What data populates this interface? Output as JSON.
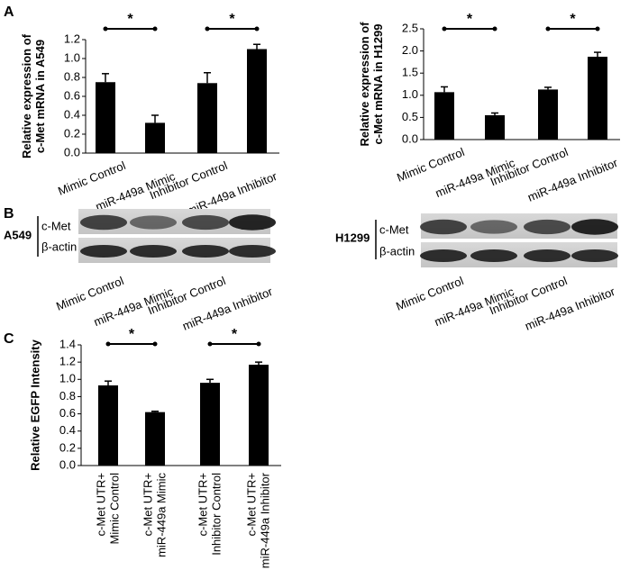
{
  "panel_labels": [
    "A",
    "B",
    "C"
  ],
  "chart_data": [
    {
      "type": "bar",
      "ylabel": [
        "Relative expression of",
        "c-Met mRNA in A549"
      ],
      "categories": [
        "Mimic Control",
        "miR-449a Mimic",
        "Inhibitor Control",
        "miR-449a Inhibitor"
      ],
      "values": [
        0.75,
        0.32,
        0.74,
        1.1
      ],
      "errors": [
        0.09,
        0.08,
        0.11,
        0.05
      ],
      "color": "#000000",
      "ylim": [
        0,
        1.2
      ],
      "yticks": [
        {
          "value": 0,
          "label": "0.0"
        },
        0.2,
        0.4,
        0.6,
        0.8,
        {
          "value": 1,
          "label": "1.0"
        },
        1.2
      ],
      "significance": [
        "*",
        "*"
      ]
    },
    {
      "type": "bar",
      "ylabel": [
        "Relative expression of",
        "c-Met mRNA in H1299"
      ],
      "categories": [
        "Mimic Control",
        "miR-449a Mimic",
        "Inhibitor Control",
        "miR-449a Inhibitor"
      ],
      "values": [
        1.07,
        0.55,
        1.13,
        1.87
      ],
      "errors": [
        0.12,
        0.05,
        0.05,
        0.1
      ],
      "color": "#000000",
      "ylim": [
        0,
        2.5
      ],
      "yticks": [
        {
          "value": 0,
          "label": "0.0"
        },
        0.5,
        {
          "value": 1,
          "label": "1.0"
        },
        1.5,
        {
          "value": 2,
          "label": "2.0"
        },
        2.5
      ],
      "significance": [
        "*",
        "*"
      ]
    },
    {
      "type": "bar",
      "ylabel": [
        "Relative EGFP Intensity"
      ],
      "categories": [
        [
          "c-Met UTR+",
          "Mimic Control"
        ],
        [
          "c-Met UTR+",
          "miR-449a Mimic"
        ],
        [
          "c-Met UTR+",
          "Inhibitor Control"
        ],
        [
          "c-Met UTR+",
          "miR-449a Inhibitor"
        ]
      ],
      "values": [
        0.93,
        0.62,
        0.96,
        1.17
      ],
      "errors": [
        0.05,
        0.01,
        0.04,
        0.03
      ],
      "color": "#000000",
      "ylim": [
        0,
        1.4
      ],
      "yticks": [
        {
          "value": 0,
          "label": "0.0"
        },
        0.2,
        0.4,
        0.6,
        0.8,
        {
          "value": 1,
          "label": "1.0"
        },
        1.2,
        1.4
      ],
      "significance": [
        "*",
        "*"
      ]
    }
  ],
  "blots": [
    {
      "cell_line": "A549",
      "rows": [
        "c-Met",
        "β-actin"
      ],
      "categories": [
        "Mimic Control",
        "miR-449a Mimic",
        "Inhibitor Control",
        "miR-449a Inhibitor"
      ]
    },
    {
      "cell_line": "H1299",
      "rows": [
        "c-Met",
        "β-actin"
      ],
      "categories": [
        "Mimic Control",
        "miR-449a Mimic",
        "Inhibitor Control",
        "miR-449a Inhibitor"
      ]
    }
  ]
}
